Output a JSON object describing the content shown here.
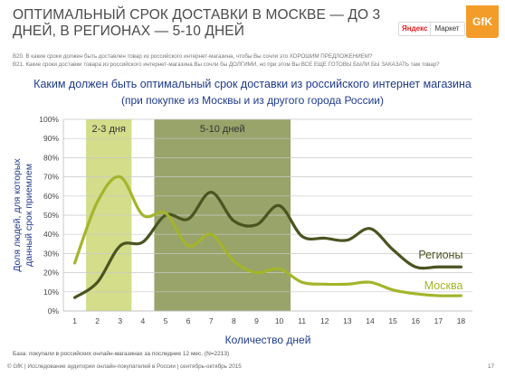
{
  "header": {
    "title_line1": "ОПТИМАЛЬНЫЙ СРОК ДОСТАВКИ В МОСКВЕ — ДО 3",
    "title_line2": "ДНЕЙ, В РЕГИОНАХ — 5-10 ДНЕЙ",
    "yandex_label": "Яндекс",
    "market_label": "Маркет",
    "gfk_label": "GfK"
  },
  "questions": {
    "q1": "B20. В какие сроки должен быть доставлен товар из российского интернет-магазина, чтобы Вы сочли это ХОРОШИМ ПРЕДЛОЖЕНИЕМ?",
    "q2": "B21. Какие сроки доставки товара из российского интернет-магазина Вы сочли бы ДОЛГИМИ, но при этом Вы ВСЕ ЕЩЕ ГОТОВЫ БЫЛИ БЫ ЗАКАЗАТЬ там товар?"
  },
  "chart_data": {
    "type": "line",
    "title": "Каким должен быть оптимальный срок доставки из российского интернет магазина",
    "subtitle": "(при покупке из Москвы и из другого города России)",
    "xlabel": "Количество дней",
    "ylabel_line1": "Доля людей, для которых",
    "ylabel_line2": "данный срок приемлем",
    "x": [
      1,
      2,
      3,
      4,
      5,
      6,
      7,
      8,
      9,
      10,
      11,
      12,
      13,
      14,
      15,
      16,
      17,
      18
    ],
    "x_tick_labels": [
      "1",
      "2",
      "3",
      "4",
      "5",
      "6",
      "7",
      "8",
      "9",
      "10",
      "11",
      "12",
      "13",
      "14",
      "15",
      "16",
      "17",
      "18"
    ],
    "ylim": [
      0,
      100
    ],
    "y_ticks": [
      0,
      10,
      20,
      30,
      40,
      50,
      60,
      70,
      80,
      90,
      100
    ],
    "y_tick_labels": [
      "0%",
      "10%",
      "20%",
      "30%",
      "40%",
      "50%",
      "60%",
      "70%",
      "80%",
      "90%",
      "100%"
    ],
    "grid": true,
    "bands": [
      {
        "label": "2-3 дня",
        "x_start": 2,
        "x_end": 3,
        "color": "#d3dd8a"
      },
      {
        "label": "5-10 дней",
        "x_start": 5,
        "x_end": 10,
        "color": "#98a46a"
      }
    ],
    "series": [
      {
        "name": "Регионы",
        "color": "#4a5420",
        "values": [
          7,
          15,
          34,
          36,
          50,
          48,
          62,
          47,
          45,
          55,
          39,
          38,
          37,
          43,
          32,
          23,
          23,
          23
        ]
      },
      {
        "name": "Москва",
        "color": "#a3b52b",
        "values": [
          25,
          57,
          70,
          50,
          51,
          34,
          40,
          26,
          20,
          22,
          15,
          14,
          14,
          15,
          11,
          9,
          8,
          8
        ]
      }
    ]
  },
  "footnote": "База: покупали в российских онлайн-магазинах за последние 12 мес. (N=2213)",
  "footer": "© GfK | Исследование аудитории онлайн-покупателей в России | сентябрь-октябрь 2015",
  "page_number": "17"
}
